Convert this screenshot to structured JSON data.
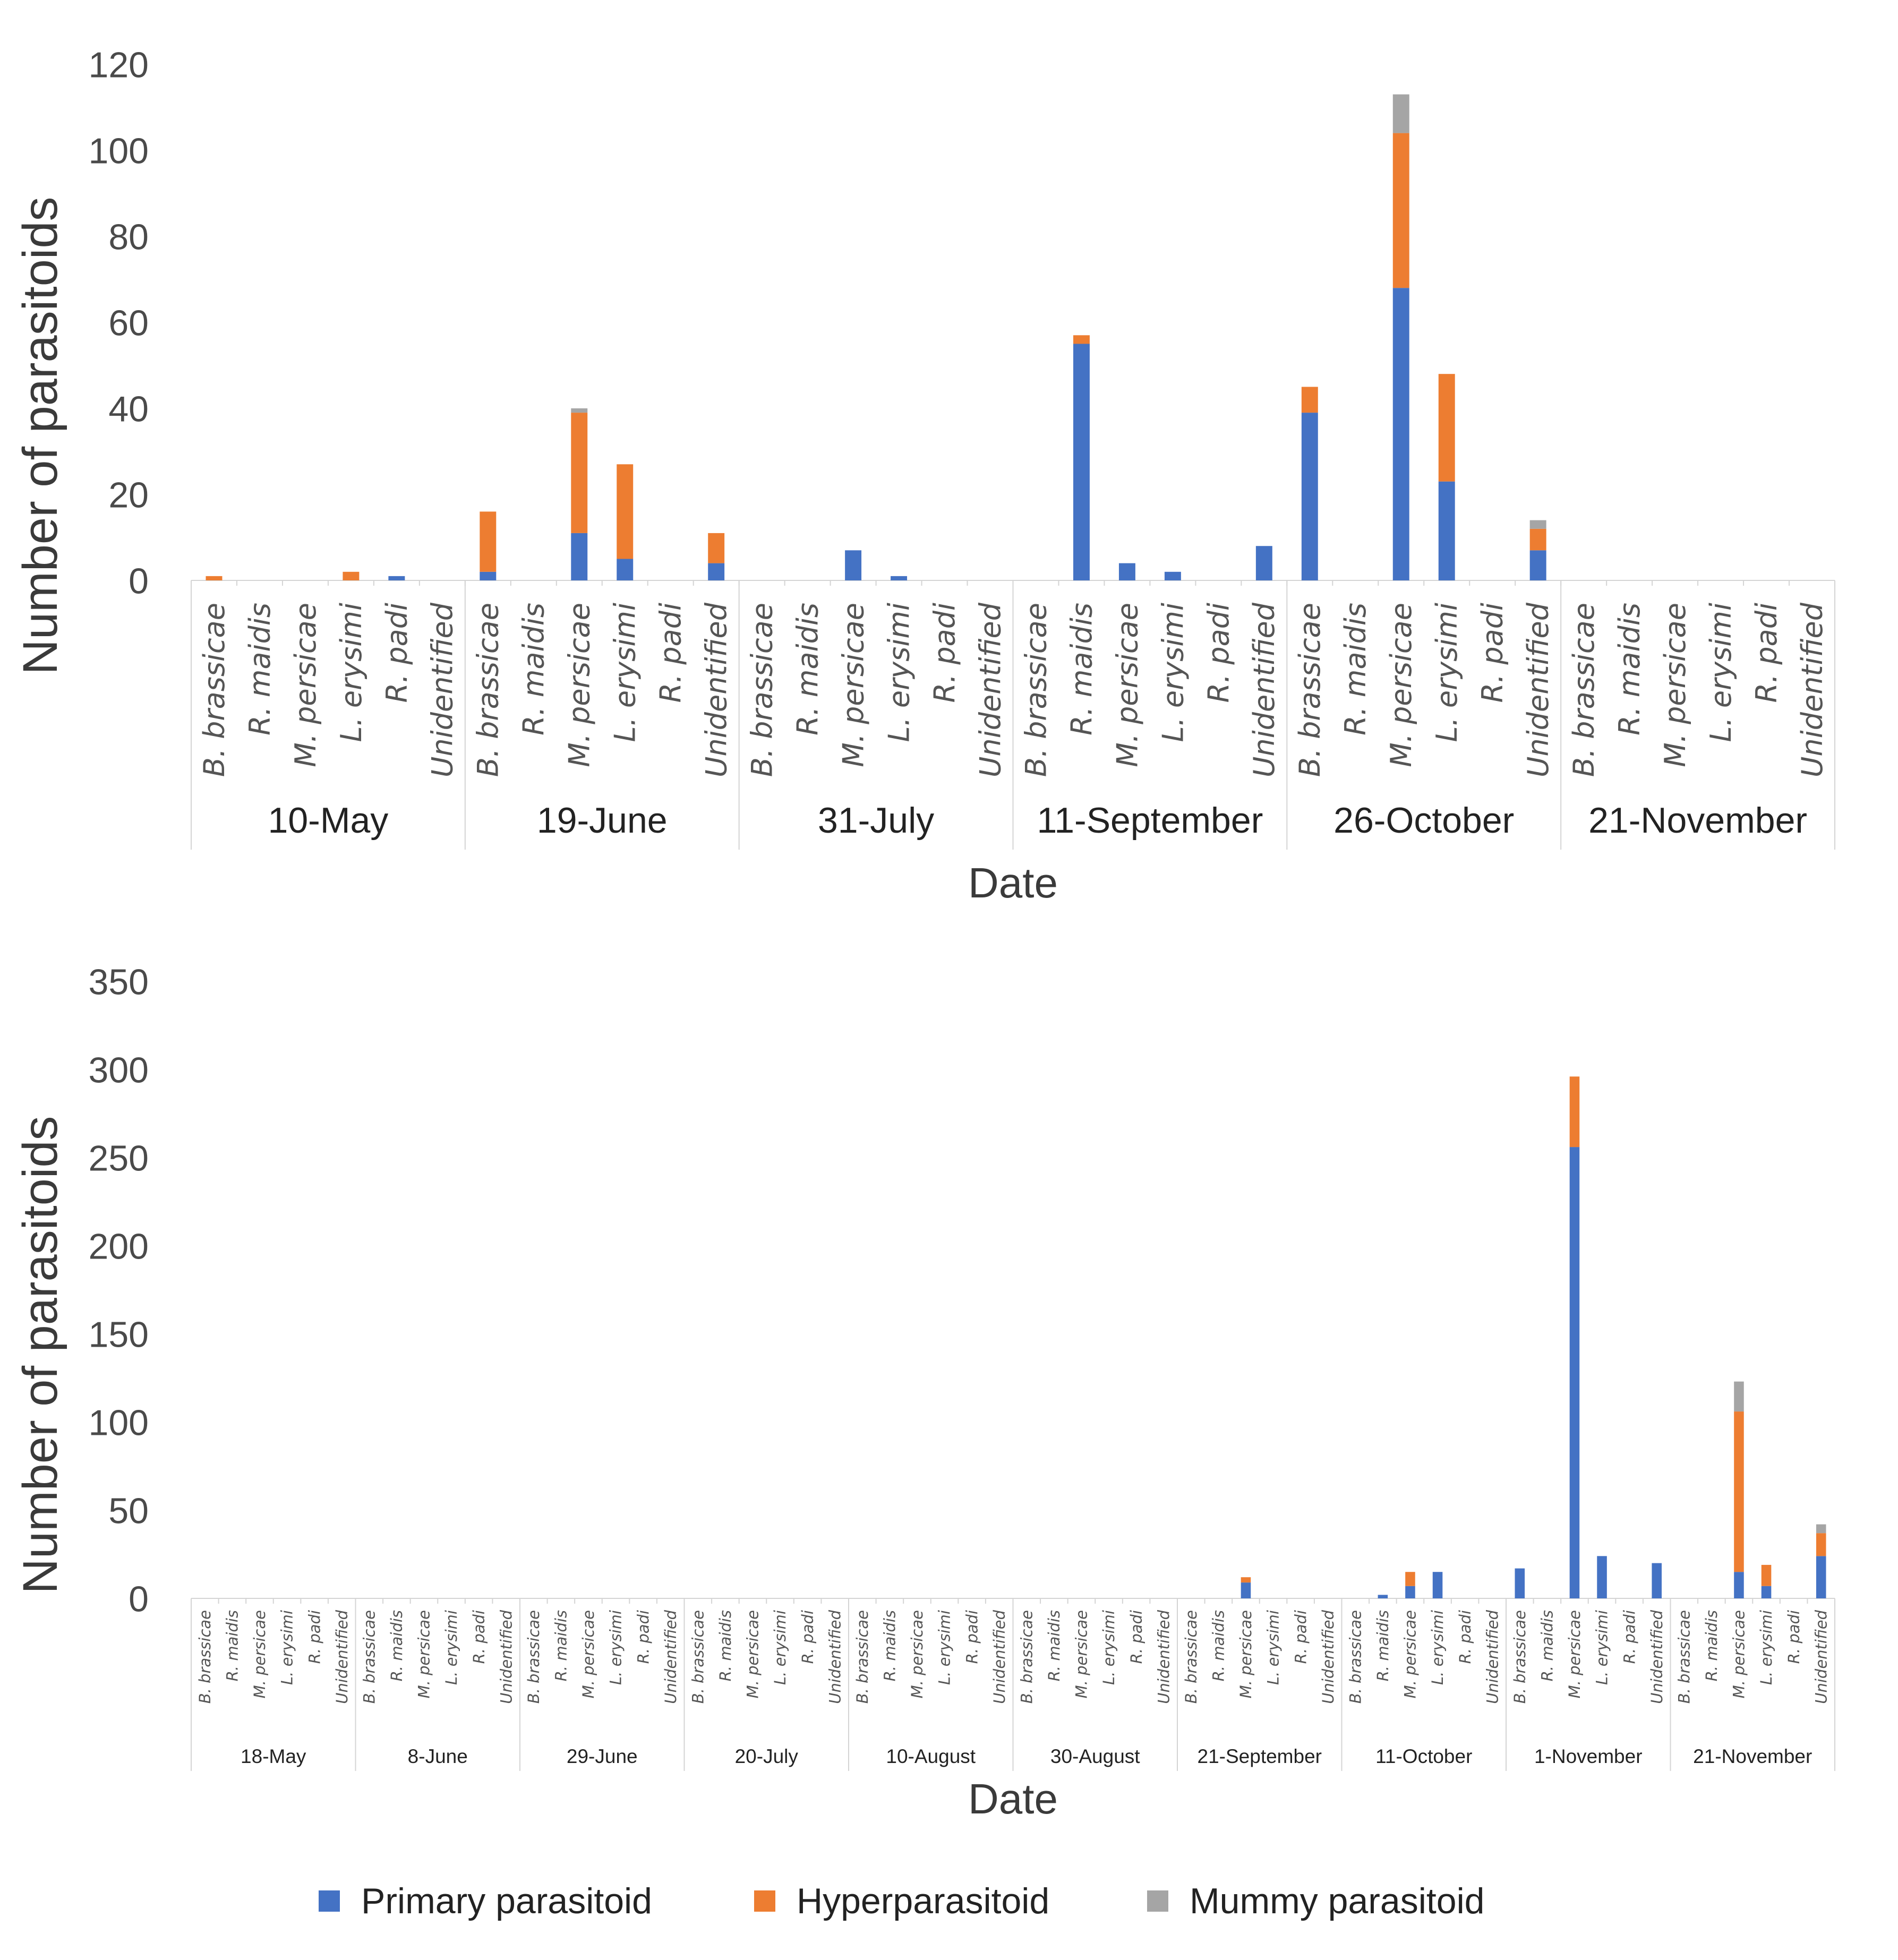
{
  "legend": [
    {
      "name": "Primary parasitoid",
      "color": "#4472C4"
    },
    {
      "name": "Hyperparasitoid",
      "color": "#ED7D31"
    },
    {
      "name": "Mummy parasitoid",
      "color": "#A5A5A5"
    }
  ],
  "chart_data": [
    {
      "type": "bar",
      "stacked": true,
      "ylabel": "Number of parasitoids",
      "xlabel": "Date",
      "ylim": [
        0,
        120
      ],
      "yticks": [
        0,
        20,
        40,
        60,
        80,
        100,
        120
      ],
      "categories": [
        "B. brassicae",
        "R. maidis",
        "M. persicae",
        "L. erysimi",
        "R. padi",
        "Unidentified"
      ],
      "groups": [
        "10-May",
        "19-June",
        "31-July",
        "11-September",
        "26-October",
        "21-November"
      ],
      "series": [
        {
          "name": "Primary parasitoid",
          "values": [
            [
              0,
              0,
              0,
              0,
              1,
              0
            ],
            [
              2,
              0,
              11,
              5,
              0,
              4
            ],
            [
              0,
              0,
              7,
              1,
              0,
              0
            ],
            [
              0,
              55,
              4,
              2,
              0,
              8
            ],
            [
              39,
              0,
              68,
              23,
              0,
              7
            ],
            [
              0,
              0,
              0,
              0,
              0,
              0
            ]
          ]
        },
        {
          "name": "Hyperparasitoid",
          "values": [
            [
              1,
              0,
              0,
              2,
              0,
              0
            ],
            [
              14,
              0,
              28,
              22,
              0,
              7
            ],
            [
              0,
              0,
              0,
              0,
              0,
              0
            ],
            [
              0,
              2,
              0,
              0,
              0,
              0
            ],
            [
              6,
              0,
              36,
              25,
              0,
              5
            ],
            [
              0,
              0,
              0,
              0,
              0,
              0
            ]
          ]
        },
        {
          "name": "Mummy parasitoid",
          "values": [
            [
              0,
              0,
              0,
              0,
              0,
              0
            ],
            [
              0,
              0,
              1,
              0,
              0,
              0
            ],
            [
              0,
              0,
              0,
              0,
              0,
              0
            ],
            [
              0,
              0,
              0,
              0,
              0,
              0
            ],
            [
              0,
              0,
              9,
              0,
              0,
              2
            ],
            [
              0,
              0,
              0,
              0,
              0,
              0
            ]
          ]
        }
      ]
    },
    {
      "type": "bar",
      "stacked": true,
      "ylabel": "Number of parasitoids",
      "xlabel": "Date",
      "ylim": [
        0,
        350
      ],
      "yticks": [
        0,
        50,
        100,
        150,
        200,
        250,
        300,
        350
      ],
      "categories": [
        "B. brassicae",
        "R. maidis",
        "M. persicae",
        "L. erysimi",
        "R. padi",
        "Unidentified"
      ],
      "groups": [
        "18-May",
        "8-June",
        "29-June",
        "20-July",
        "10-August",
        "30-August",
        "21-September",
        "11-October",
        "1-November",
        "21-November"
      ],
      "series": [
        {
          "name": "Primary parasitoid",
          "values": [
            [
              0,
              0,
              0,
              0,
              0,
              0
            ],
            [
              0,
              0,
              0,
              0,
              0,
              0
            ],
            [
              0,
              0,
              0,
              0,
              0,
              0
            ],
            [
              0,
              0,
              0,
              0,
              0,
              0
            ],
            [
              0,
              0,
              0,
              0,
              0,
              0
            ],
            [
              0,
              0,
              0,
              0,
              0,
              0
            ],
            [
              0,
              0,
              9,
              0,
              0,
              0
            ],
            [
              0,
              2,
              7,
              15,
              0,
              0
            ],
            [
              17,
              0,
              256,
              24,
              0,
              20
            ],
            [
              0,
              0,
              15,
              7,
              0,
              24
            ]
          ]
        },
        {
          "name": "Hyperparasitoid",
          "values": [
            [
              0,
              0,
              0,
              0,
              0,
              0
            ],
            [
              0,
              0,
              0,
              0,
              0,
              0
            ],
            [
              0,
              0,
              0,
              0,
              0,
              0
            ],
            [
              0,
              0,
              0,
              0,
              0,
              0
            ],
            [
              0,
              0,
              0,
              0,
              0,
              0
            ],
            [
              0,
              0,
              0,
              0,
              0,
              0
            ],
            [
              0,
              0,
              3,
              0,
              0,
              0
            ],
            [
              0,
              0,
              8,
              0,
              0,
              0
            ],
            [
              0,
              0,
              40,
              0,
              0,
              0
            ],
            [
              0,
              0,
              91,
              12,
              0,
              13
            ]
          ]
        },
        {
          "name": "Mummy parasitoid",
          "values": [
            [
              0,
              0,
              0,
              0,
              0,
              0
            ],
            [
              0,
              0,
              0,
              0,
              0,
              0
            ],
            [
              0,
              0,
              0,
              0,
              0,
              0
            ],
            [
              0,
              0,
              0,
              0,
              0,
              0
            ],
            [
              0,
              0,
              0,
              0,
              0,
              0
            ],
            [
              0,
              0,
              0,
              0,
              0,
              0
            ],
            [
              0,
              0,
              0,
              0,
              0,
              0
            ],
            [
              0,
              0,
              0,
              0,
              0,
              0
            ],
            [
              0,
              0,
              0,
              0,
              0,
              0
            ],
            [
              0,
              0,
              17,
              0,
              0,
              5
            ]
          ]
        }
      ]
    }
  ]
}
